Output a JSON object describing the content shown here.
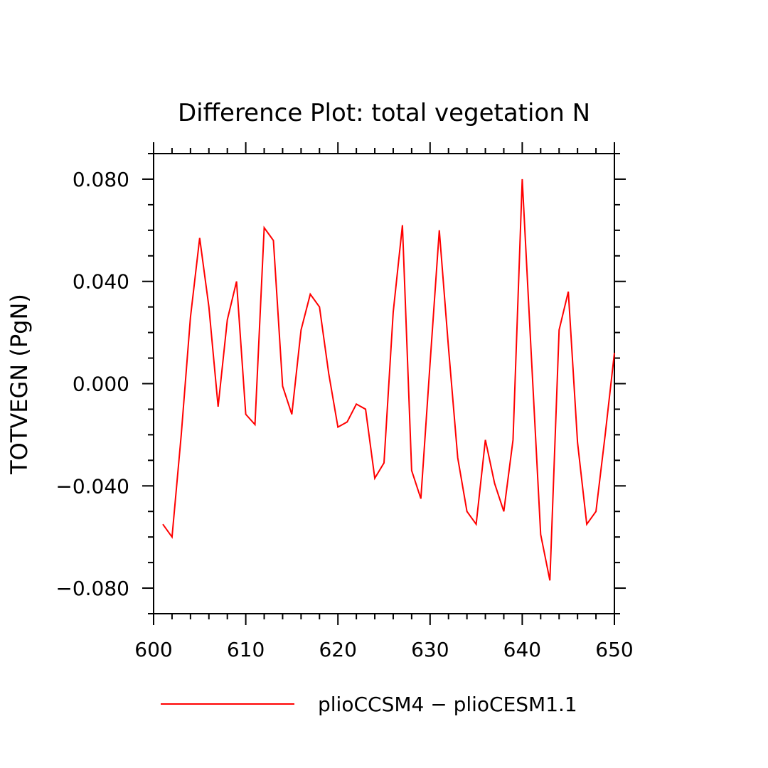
{
  "chart_data": {
    "type": "line",
    "title": "Difference Plot: total vegetation N",
    "xlabel": "",
    "ylabel": "TOTVEGN   (PgN)",
    "xlim": [
      600,
      650
    ],
    "ylim": [
      -0.09,
      0.09
    ],
    "xticks": [
      600,
      610,
      620,
      630,
      640,
      650
    ],
    "xtick_labels": [
      "600",
      "610",
      "620",
      "630",
      "640",
      "650"
    ],
    "yticks": [
      0.08,
      0.04,
      0.0,
      -0.04,
      -0.08
    ],
    "ytick_labels": [
      "0.080",
      "0.040",
      "0.000",
      "−0.040",
      "−0.080"
    ],
    "grid": false,
    "legend_position": "bottom",
    "series": [
      {
        "name": "plioCCSM4 − plioCESM1.1",
        "color": "#ff0000",
        "x": [
          601,
          602,
          603,
          604,
          605,
          606,
          607,
          608,
          609,
          610,
          611,
          612,
          613,
          614,
          615,
          616,
          617,
          618,
          619,
          620,
          621,
          622,
          623,
          624,
          625,
          626,
          627,
          628,
          629,
          630,
          631,
          632,
          633,
          634,
          635,
          636,
          637,
          638,
          639,
          640,
          641,
          642,
          643,
          644,
          645,
          646,
          647,
          648,
          649,
          650
        ],
        "y": [
          -0.055,
          -0.06,
          -0.02,
          0.026,
          0.057,
          0.03,
          -0.009,
          0.025,
          0.04,
          -0.012,
          -0.016,
          0.061,
          0.056,
          -0.001,
          -0.012,
          0.021,
          0.035,
          0.03,
          0.004,
          -0.017,
          -0.015,
          -0.008,
          -0.01,
          -0.037,
          -0.031,
          0.028,
          0.062,
          -0.034,
          -0.045,
          0.008,
          0.06,
          0.014,
          -0.029,
          -0.05,
          -0.055,
          -0.022,
          -0.039,
          -0.05,
          -0.022,
          0.08,
          0.01,
          -0.059,
          -0.077,
          0.021,
          0.036,
          -0.023,
          -0.055,
          -0.05,
          -0.02,
          0.012
        ]
      }
    ]
  }
}
